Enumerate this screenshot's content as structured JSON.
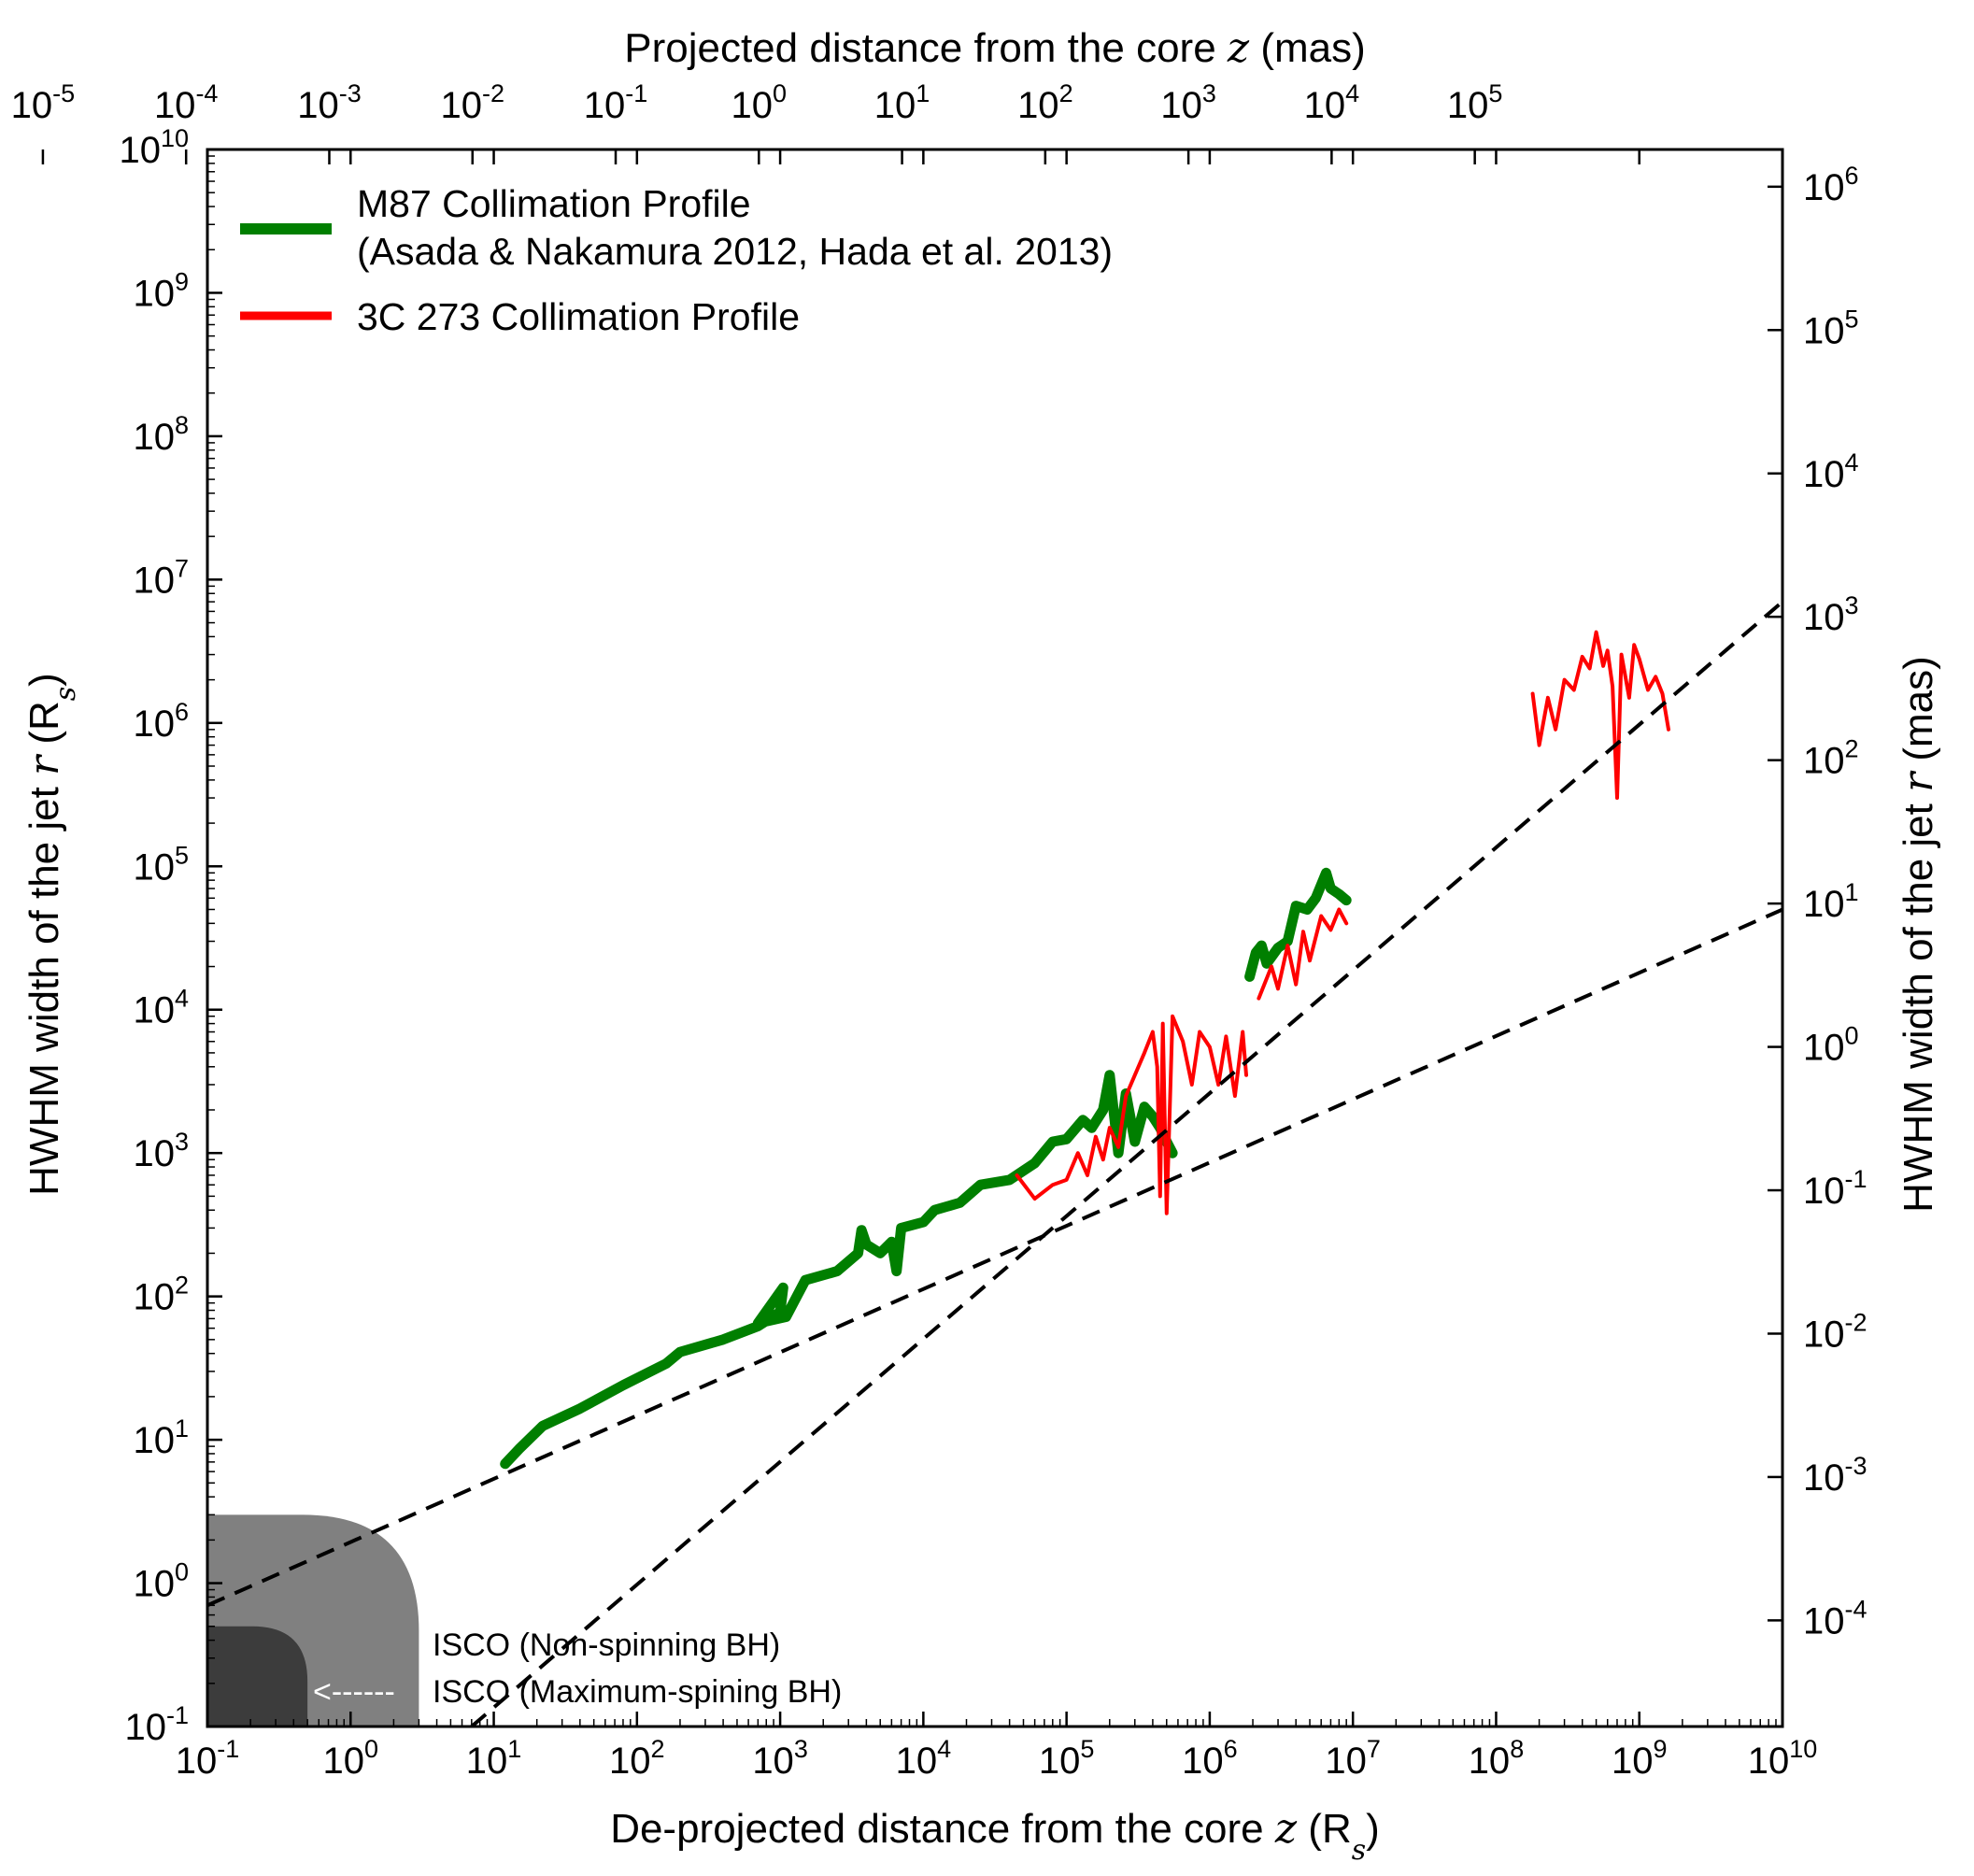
{
  "chart_data": {
    "type": "line",
    "scale": {
      "x": "log",
      "y": "log"
    },
    "xlim": [
      0.1,
      10000000000
    ],
    "ylim": [
      0.1,
      10000000000
    ],
    "xlabel": {
      "text": "De-projected distance from the core",
      "var": "z",
      "unit": "(R",
      "unit_sub": "s",
      "unit_close": ")"
    },
    "ylabel": {
      "text": "HWHM width of the jet",
      "var": "r",
      "unit": "(R",
      "unit_sub": "s",
      "unit_close": ")"
    },
    "top_axis_label": {
      "text": "Projected distance from the core",
      "var": "z",
      "unit": "(mas)"
    },
    "right_axis_label": {
      "text": "HWHM width of the jet",
      "var": "r",
      "unit": "(mas)"
    },
    "bottom_ticks": [
      {
        "base": "10",
        "exp": "-1",
        "value": 0.1
      },
      {
        "base": "10",
        "exp": "0",
        "value": 1
      },
      {
        "base": "10",
        "exp": "1",
        "value": 10
      },
      {
        "base": "10",
        "exp": "2",
        "value": 100
      },
      {
        "base": "10",
        "exp": "3",
        "value": 1000
      },
      {
        "base": "10",
        "exp": "4",
        "value": 10000
      },
      {
        "base": "10",
        "exp": "5",
        "value": 100000
      },
      {
        "base": "10",
        "exp": "6",
        "value": 1000000
      },
      {
        "base": "10",
        "exp": "7",
        "value": 10000000
      },
      {
        "base": "10",
        "exp": "8",
        "value": 100000000
      },
      {
        "base": "10",
        "exp": "9",
        "value": 1000000000
      },
      {
        "base": "10",
        "exp": "10",
        "value": 10000000000
      }
    ],
    "left_ticks": [
      {
        "base": "10",
        "exp": "-1",
        "value": 0.1
      },
      {
        "base": "10",
        "exp": "0",
        "value": 1
      },
      {
        "base": "10",
        "exp": "1",
        "value": 10
      },
      {
        "base": "10",
        "exp": "2",
        "value": 100
      },
      {
        "base": "10",
        "exp": "3",
        "value": 1000
      },
      {
        "base": "10",
        "exp": "4",
        "value": 10000
      },
      {
        "base": "10",
        "exp": "5",
        "value": 100000
      },
      {
        "base": "10",
        "exp": "6",
        "value": 1000000
      },
      {
        "base": "10",
        "exp": "7",
        "value": 10000000
      },
      {
        "base": "10",
        "exp": "8",
        "value": 100000000
      },
      {
        "base": "10",
        "exp": "9",
        "value": 1000000000
      },
      {
        "base": "10",
        "exp": "10",
        "value": 10000000000
      }
    ],
    "top_ticks": [
      {
        "base": "10",
        "exp": "-5",
        "rs_value": 0.0071
      },
      {
        "base": "10",
        "exp": "-4",
        "rs_value": 0.071
      },
      {
        "base": "10",
        "exp": "-3",
        "rs_value": 0.71
      },
      {
        "base": "10",
        "exp": "-2",
        "rs_value": 7.1
      },
      {
        "base": "10",
        "exp": "-1",
        "rs_value": 71
      },
      {
        "base": "10",
        "exp": "0",
        "rs_value": 710
      },
      {
        "base": "10",
        "exp": "1",
        "rs_value": 7100
      },
      {
        "base": "10",
        "exp": "2",
        "rs_value": 71000
      },
      {
        "base": "10",
        "exp": "3",
        "rs_value": 710000
      },
      {
        "base": "10",
        "exp": "4",
        "rs_value": 7100000
      },
      {
        "base": "10",
        "exp": "5",
        "rs_value": 71000000
      }
    ],
    "right_ticks": [
      {
        "base": "10",
        "exp": "-4",
        "rs_value": 0.55
      },
      {
        "base": "10",
        "exp": "-3",
        "rs_value": 5.5
      },
      {
        "base": "10",
        "exp": "-2",
        "rs_value": 55
      },
      {
        "base": "10",
        "exp": "-1",
        "rs_value": 550
      },
      {
        "base": "10",
        "exp": "0",
        "rs_value": 5500
      },
      {
        "base": "10",
        "exp": "1",
        "rs_value": 55000
      },
      {
        "base": "10",
        "exp": "2",
        "rs_value": 550000
      },
      {
        "base": "10",
        "exp": "3",
        "rs_value": 5500000
      },
      {
        "base": "10",
        "exp": "4",
        "rs_value": 55000000
      },
      {
        "base": "10",
        "exp": "5",
        "rs_value": 550000000
      },
      {
        "base": "10",
        "exp": "6",
        "rs_value": 5500000000
      }
    ],
    "legend": {
      "location": "upper-left",
      "entries": [
        {
          "label_line1": "M87 Collimation Profile",
          "label_line2": "(Asada & Nakamura 2012, Hada et al. 2013)",
          "color": "#007f00"
        },
        {
          "label_line1": "3C 273 Collimation Profile",
          "color": "#ff0000"
        }
      ]
    },
    "series": [
      {
        "name": "M87 Collimation Profile",
        "color": "#007f00",
        "style": "thick",
        "segments": [
          [
            [
              12,
              6.8
            ],
            [
              15,
              8.6
            ],
            [
              22,
              12.5
            ],
            [
              40,
              16.5
            ],
            [
              80,
              24
            ],
            [
              160,
              34
            ],
            [
              200,
              41
            ],
            [
              400,
              50
            ],
            [
              700,
              62
            ],
            [
              1000,
              78
            ],
            [
              1050,
              115
            ],
            [
              700,
              65
            ],
            [
              1100,
              72
            ],
            [
              1500,
              130
            ],
            [
              2500,
              150
            ],
            [
              3500,
              200
            ],
            [
              3700,
              290
            ],
            [
              4000,
              230
            ],
            [
              5000,
              200
            ],
            [
              6000,
              240
            ],
            [
              6500,
              150
            ],
            [
              7000,
              300
            ],
            [
              10000,
              330
            ],
            [
              12000,
              400
            ],
            [
              18000,
              450
            ],
            [
              25000,
              600
            ],
            [
              40000,
              650
            ],
            [
              60000,
              850
            ],
            [
              80000,
              1200
            ],
            [
              100000,
              1250
            ],
            [
              130000,
              1700
            ],
            [
              150000,
              1500
            ],
            [
              180000,
              2000
            ],
            [
              200000,
              3500
            ],
            [
              230000,
              1000
            ],
            [
              260000,
              2600
            ],
            [
              300000,
              1200
            ],
            [
              350000,
              2100
            ],
            [
              400000,
              1800
            ],
            [
              450000,
              1500
            ],
            [
              500000,
              1200
            ],
            [
              550000,
              1000
            ]
          ],
          [
            [
              1900000,
              17000
            ],
            [
              2100000,
              25000
            ],
            [
              2300000,
              28000
            ],
            [
              2500000,
              21000
            ],
            [
              3000000,
              27000
            ],
            [
              3500000,
              30000
            ],
            [
              4000000,
              53000
            ],
            [
              4800000,
              50000
            ],
            [
              5500000,
              60000
            ],
            [
              6500000,
              90000
            ],
            [
              7000000,
              70000
            ],
            [
              8000000,
              64000
            ],
            [
              9000000,
              58000
            ]
          ]
        ]
      },
      {
        "name": "3C 273 Collimation Profile",
        "color": "#ff0000",
        "style": "thin",
        "segments": [
          [
            [
              45000,
              700
            ],
            [
              60000,
              480
            ],
            [
              80000,
              600
            ],
            [
              100000,
              650
            ],
            [
              120000,
              1000
            ],
            [
              140000,
              700
            ],
            [
              160000,
              1300
            ],
            [
              180000,
              900
            ],
            [
              200000,
              1500
            ],
            [
              230000,
              1100
            ],
            [
              260000,
              2500
            ],
            [
              300000,
              3500
            ],
            [
              350000,
              5000
            ],
            [
              400000,
              7000
            ],
            [
              430000,
              4000
            ],
            [
              450000,
              500
            ],
            [
              470000,
              8000
            ],
            [
              500000,
              380
            ],
            [
              550000,
              9000
            ],
            [
              650000,
              6000
            ],
            [
              750000,
              3000
            ],
            [
              850000,
              7000
            ],
            [
              1000000,
              5500
            ],
            [
              1150000,
              3000
            ],
            [
              1300000,
              6500
            ],
            [
              1500000,
              2500
            ],
            [
              1700000,
              7000
            ],
            [
              1800000,
              3500
            ]
          ],
          [
            [
              2200000,
              12000
            ],
            [
              2700000,
              20000
            ],
            [
              3000000,
              14000
            ],
            [
              3500000,
              28000
            ],
            [
              4000000,
              15000
            ],
            [
              4500000,
              35000
            ],
            [
              5000000,
              22000
            ],
            [
              6000000,
              45000
            ],
            [
              7000000,
              36000
            ],
            [
              8000000,
              50000
            ],
            [
              9000000,
              40000
            ]
          ],
          [
            [
              180000000,
              1600000
            ],
            [
              200000000,
              700000
            ],
            [
              230000000,
              1500000
            ],
            [
              260000000,
              900000
            ],
            [
              300000000,
              2000000
            ],
            [
              350000000,
              1700000
            ],
            [
              400000000,
              2900000
            ],
            [
              450000000,
              2400000
            ],
            [
              500000000,
              4300000
            ],
            [
              560000000,
              2500000
            ],
            [
              600000000,
              3200000
            ],
            [
              650000000,
              1800000
            ],
            [
              700000000,
              300000
            ],
            [
              750000000,
              3000000
            ],
            [
              850000000,
              1500000
            ],
            [
              920000000,
              3500000
            ],
            [
              1000000000,
              2800000
            ],
            [
              1150000000,
              1700000
            ],
            [
              1300000000,
              2100000
            ],
            [
              1450000000,
              1600000
            ],
            [
              1600000000,
              900000
            ]
          ]
        ]
      },
      {
        "name": "Dashed fit (shallow)",
        "color": "#000000",
        "style": "dashed",
        "points": [
          [
            0.1,
            0.7
          ],
          [
            10000000000,
            50000
          ]
        ]
      },
      {
        "name": "Dashed fit (steep)",
        "color": "#000000",
        "style": "dashed",
        "points": [
          [
            7,
            0.1
          ],
          [
            10000000000,
            7000000
          ]
        ]
      }
    ],
    "shaded_regions": [
      {
        "name": "ISCO (Non-spinning BH)",
        "x_extent": 3,
        "y_extent": 3,
        "color": "#808080"
      },
      {
        "name": "ISCO (Maximum-spining BH)",
        "x_extent": 0.5,
        "y_extent": 0.5,
        "color": "#3c3c3c"
      }
    ],
    "annotations": [
      {
        "text": "ISCO (Non-spinning BH)"
      },
      {
        "text": "ISCO (Maximum-spining BH)",
        "arrow": "<------"
      }
    ]
  }
}
